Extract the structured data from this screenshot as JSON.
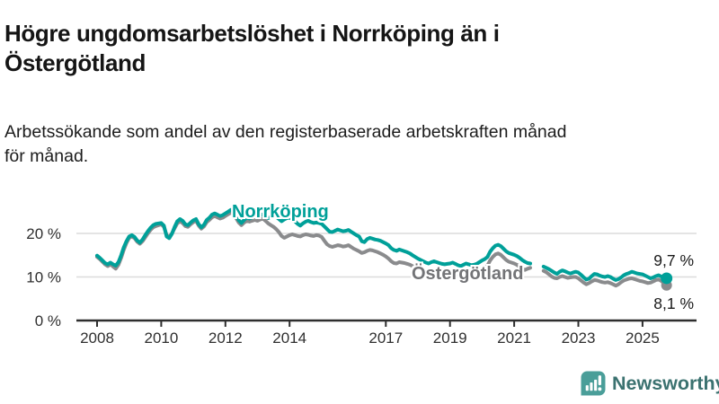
{
  "header": {
    "title": "Högre ungdomsarbetslöshet i Norrköping än i\nÖstergötland",
    "subtitle": "Arbetssökande som andel av den registerbaserade arbetskraften månad\nför månad."
  },
  "chart_data": {
    "type": "line",
    "unit": "%",
    "x_start": 2008.0,
    "x_step_months": 1,
    "x_end": 2025.75,
    "x_ticks": [
      2008,
      2010,
      2012,
      2014,
      2017,
      2019,
      2021,
      2023,
      2025
    ],
    "y_ticks": [
      {
        "v": 0,
        "label": "0 %"
      },
      {
        "v": 10,
        "label": "10 %"
      },
      {
        "v": 20,
        "label": "20 %"
      }
    ],
    "ylim": [
      0,
      27
    ],
    "grid": "horizontal",
    "axis_color": "#2e2e2e",
    "grid_color": "#dcdcdc",
    "tick_label_color": "#2f2f2f",
    "series": [
      {
        "name": "Norrköping",
        "color": "#00a099",
        "end_label": "9,7 %",
        "end_value": 9.7,
        "values": [
          14.9,
          14.4,
          13.8,
          13.2,
          12.9,
          13.3,
          12.9,
          12.6,
          13.4,
          15.0,
          16.8,
          18.2,
          19.3,
          19.6,
          19.2,
          18.4,
          17.9,
          18.6,
          19.6,
          20.5,
          21.3,
          21.9,
          22.2,
          22.3,
          22.4,
          21.8,
          19.3,
          18.9,
          19.9,
          21.5,
          22.8,
          23.3,
          22.9,
          22.1,
          21.9,
          22.5,
          23.0,
          23.3,
          22.1,
          21.4,
          22.0,
          23.1,
          23.6,
          24.3,
          24.6,
          24.3,
          24.0,
          24.2,
          24.6,
          25.0,
          25.4,
          24.9,
          24.1,
          23.0,
          22.4,
          23.1,
          23.6,
          23.4,
          23.7,
          23.9,
          23.7,
          24.1,
          24.4,
          24.0,
          23.5,
          23.8,
          24.2,
          23.8,
          23.3,
          22.8,
          23.2,
          23.5,
          23.6,
          23.3,
          22.8,
          22.2,
          21.8,
          22.3,
          22.7,
          22.9,
          22.6,
          22.4,
          22.5,
          22.4,
          22.2,
          21.6,
          21.0,
          20.4,
          20.3,
          20.6,
          20.9,
          20.7,
          20.5,
          20.6,
          20.8,
          20.4,
          20.0,
          19.6,
          19.3,
          18.2,
          18.0,
          18.7,
          19.0,
          18.8,
          18.6,
          18.5,
          18.3,
          18.0,
          17.7,
          17.3,
          16.6,
          16.2,
          16.0,
          16.3,
          16.1,
          15.9,
          15.7,
          15.4,
          15.0,
          14.6,
          14.2,
          13.9,
          13.6,
          13.3,
          13.1,
          13.4,
          13.6,
          13.4,
          13.2,
          13.0,
          12.9,
          13.0,
          13.1,
          13.3,
          13.0,
          12.7,
          12.5,
          12.8,
          13.1,
          12.9,
          12.7,
          12.8,
          13.0,
          13.4,
          13.8,
          14.1,
          14.6,
          15.8,
          16.6,
          17.2,
          17.4,
          17.1,
          16.5,
          15.9,
          15.5,
          15.3,
          15.1,
          14.8,
          14.4,
          13.9,
          13.5,
          13.2,
          13.1,
          null,
          null,
          null,
          null,
          12.4,
          12.1,
          11.8,
          11.4,
          11.0,
          10.7,
          11.2,
          11.5,
          11.3,
          11.0,
          10.8,
          11.0,
          11.2,
          11.0,
          10.5,
          9.9,
          9.4,
          9.6,
          10.2,
          10.7,
          10.6,
          10.3,
          10.1,
          10.0,
          10.2,
          10.0,
          9.6,
          9.3,
          9.5,
          9.9,
          10.4,
          10.7,
          10.9,
          11.2,
          11.0,
          10.8,
          10.7,
          10.6,
          10.3,
          10.0,
          9.7,
          9.9,
          10.2,
          10.4,
          10.1,
          9.9,
          9.7
        ]
      },
      {
        "name": "Östergötland",
        "color": "#8a8b8d",
        "end_label": "8,1 %",
        "end_value": 8.1,
        "values": [
          14.6,
          14.1,
          13.5,
          12.9,
          12.5,
          12.9,
          12.4,
          11.9,
          12.8,
          14.4,
          16.2,
          17.8,
          19.0,
          19.3,
          18.9,
          18.1,
          17.6,
          18.2,
          19.1,
          20.0,
          20.8,
          21.4,
          21.7,
          21.9,
          22.1,
          21.5,
          19.6,
          19.2,
          20.0,
          21.2,
          22.3,
          22.8,
          22.4,
          21.7,
          21.5,
          22.1,
          22.6,
          22.9,
          21.8,
          21.1,
          21.6,
          22.6,
          23.1,
          23.7,
          24.0,
          23.7,
          23.4,
          23.6,
          24.0,
          24.4,
          24.8,
          24.3,
          23.5,
          22.5,
          21.9,
          22.5,
          22.9,
          22.7,
          22.9,
          23.1,
          22.9,
          23.2,
          23.4,
          22.9,
          22.3,
          21.9,
          21.5,
          21.0,
          20.3,
          19.4,
          19.0,
          19.3,
          19.6,
          19.8,
          19.6,
          19.4,
          19.3,
          19.6,
          19.8,
          19.7,
          19.5,
          19.4,
          19.6,
          19.5,
          19.2,
          18.3,
          17.5,
          17.1,
          16.9,
          17.1,
          17.3,
          17.2,
          17.0,
          17.1,
          17.3,
          16.9,
          16.5,
          16.2,
          15.9,
          15.5,
          15.7,
          16.0,
          16.2,
          16.1,
          15.9,
          15.7,
          15.4,
          15.1,
          14.7,
          14.2,
          13.6,
          13.2,
          13.1,
          13.4,
          13.3,
          13.2,
          13.0,
          12.8,
          12.5,
          12.2,
          11.9,
          11.7,
          11.5,
          11.2,
          11.0,
          11.3,
          11.5,
          11.3,
          11.1,
          10.9,
          10.8,
          10.9,
          11.0,
          11.2,
          10.9,
          10.7,
          10.5,
          10.8,
          11.0,
          10.9,
          10.7,
          10.8,
          11.0,
          11.4,
          11.8,
          12.1,
          12.6,
          13.8,
          14.6,
          15.2,
          15.4,
          15.1,
          14.5,
          13.9,
          13.5,
          13.3,
          13.1,
          12.8,
          12.4,
          11.9,
          11.6,
          11.9,
          12.1,
          null,
          null,
          null,
          null,
          11.4,
          11.1,
          10.6,
          10.1,
          9.8,
          9.7,
          10.0,
          10.2,
          10.0,
          9.8,
          9.9,
          10.0,
          10.0,
          9.7,
          9.2,
          8.7,
          8.3,
          8.6,
          9.0,
          9.3,
          9.2,
          9.0,
          8.8,
          8.7,
          8.8,
          8.6,
          8.3,
          8.0,
          8.3,
          8.8,
          9.2,
          9.4,
          9.6,
          9.7,
          9.5,
          9.3,
          9.1,
          9.0,
          8.8,
          8.6,
          8.7,
          9.0,
          9.3,
          9.4,
          9.1,
          8.6,
          8.1
        ]
      }
    ]
  },
  "footer": {
    "brand": "Newsworthy",
    "brand_color": "#3b7270",
    "badge_color": "#4a9e99"
  }
}
